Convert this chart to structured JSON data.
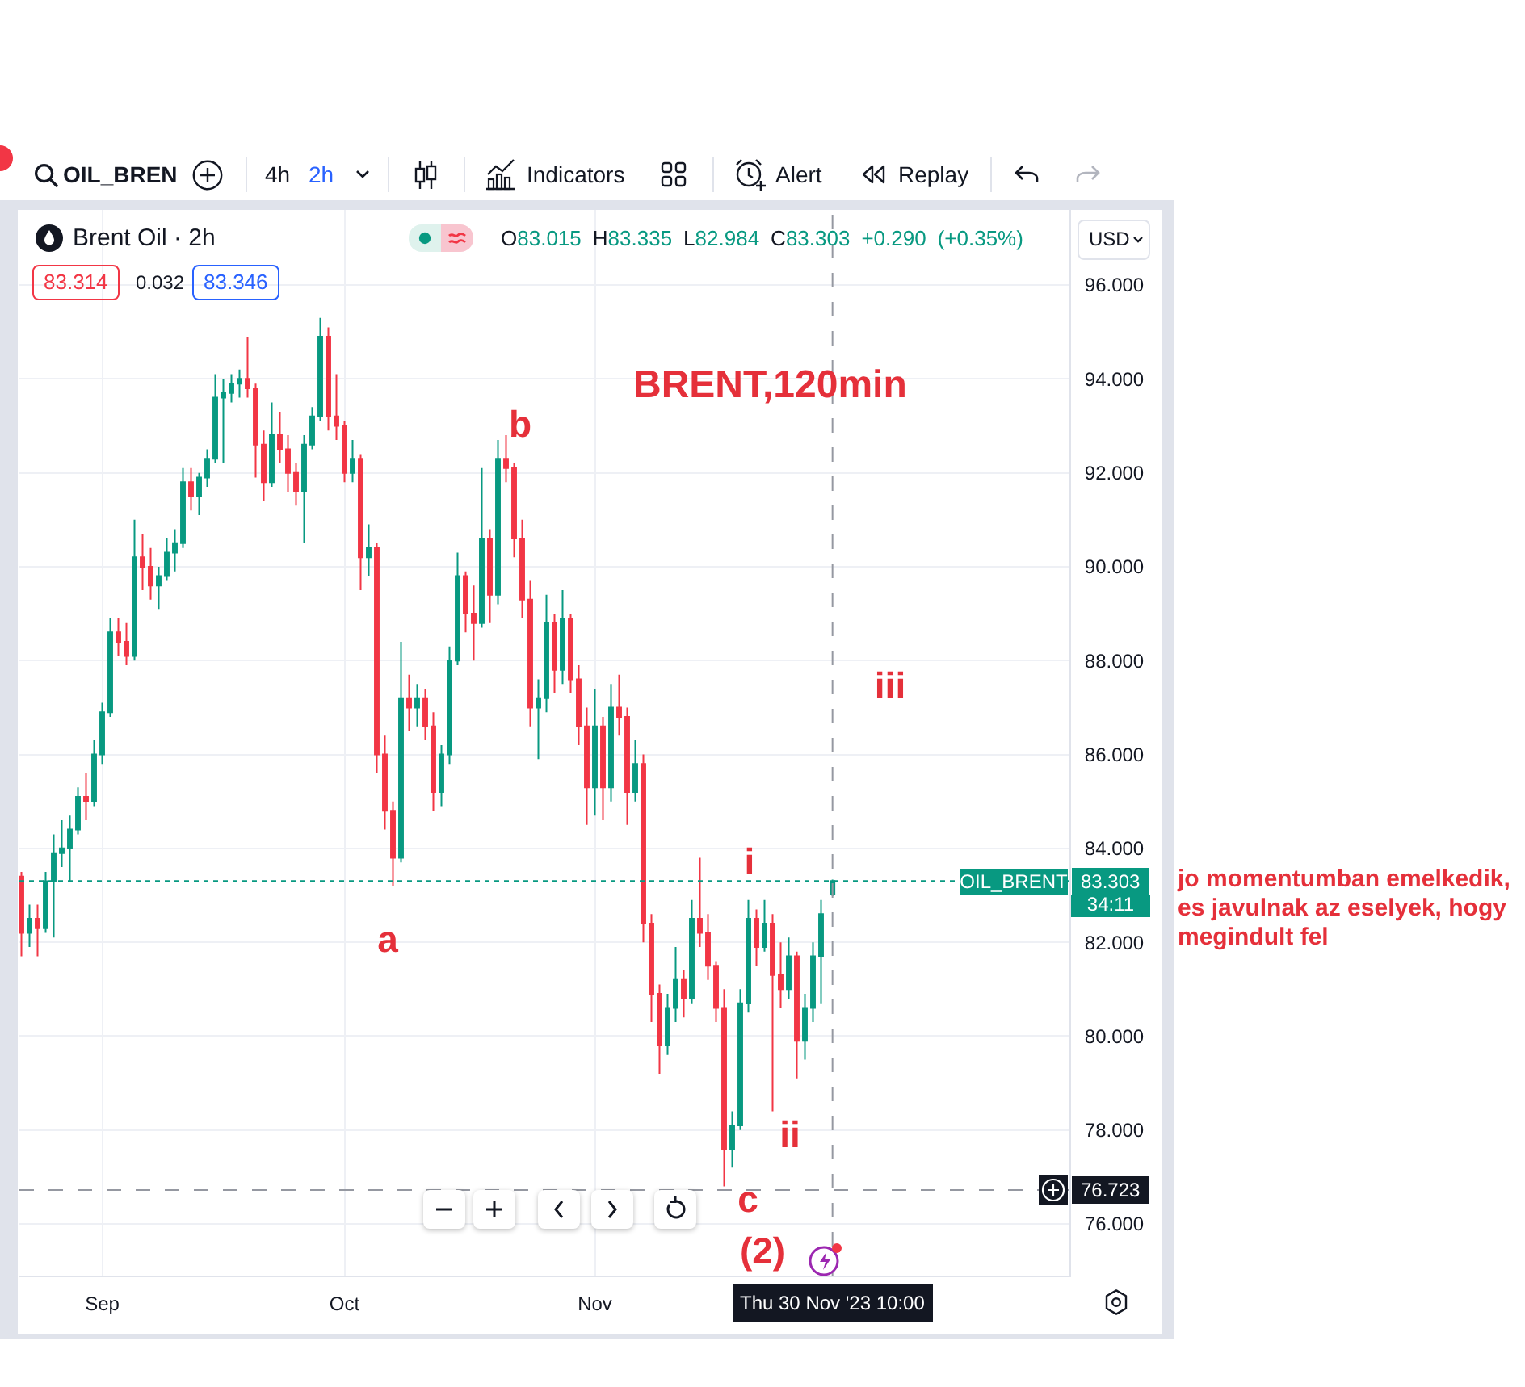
{
  "chart_data": {
    "type": "candlestick",
    "title": "Brent Oil · 2h",
    "subtitle": "O83.015 H83.335 L82.984 C83.303 +0.290 (+0.35%)",
    "x": [
      "2023-08-22",
      "2023-08-23",
      "2023-08-24",
      "2023-08-25",
      "2023-08-26",
      "2023-08-27",
      "2023-08-28",
      "2023-08-29",
      "2023-08-30",
      "2023-08-31",
      "2023-09-01",
      "2023-09-02",
      "2023-09-03",
      "2023-09-04",
      "2023-09-05",
      "2023-09-06",
      "2023-09-07",
      "2023-09-08",
      "2023-09-09",
      "2023-09-10",
      "2023-09-11",
      "2023-09-12",
      "2023-09-13",
      "2023-09-14",
      "2023-09-15",
      "2023-09-16",
      "2023-09-17",
      "2023-09-18",
      "2023-09-19",
      "2023-09-20",
      "2023-09-21",
      "2023-09-22",
      "2023-09-23",
      "2023-09-24",
      "2023-09-25",
      "2023-09-26",
      "2023-09-27",
      "2023-09-28",
      "2023-09-29",
      "2023-09-30",
      "2023-10-01",
      "2023-10-02",
      "2023-10-03",
      "2023-10-04",
      "2023-10-05",
      "2023-10-06",
      "2023-10-07",
      "2023-10-08",
      "2023-10-09",
      "2023-10-10",
      "2023-10-11",
      "2023-10-12",
      "2023-10-13",
      "2023-10-14",
      "2023-10-15",
      "2023-10-16",
      "2023-10-17",
      "2023-10-18",
      "2023-10-19",
      "2023-10-20",
      "2023-10-21",
      "2023-10-22",
      "2023-10-23",
      "2023-10-24",
      "2023-10-25",
      "2023-10-26",
      "2023-10-27",
      "2023-10-28",
      "2023-10-29",
      "2023-10-30",
      "2023-10-31",
      "2023-11-01",
      "2023-11-02",
      "2023-11-03",
      "2023-11-04",
      "2023-11-05",
      "2023-11-06",
      "2023-11-07",
      "2023-11-08",
      "2023-11-09",
      "2023-11-10",
      "2023-11-11",
      "2023-11-12",
      "2023-11-13",
      "2023-11-14",
      "2023-11-15",
      "2023-11-16",
      "2023-11-17",
      "2023-11-18",
      "2023-11-19",
      "2023-11-20",
      "2023-11-21",
      "2023-11-22",
      "2023-11-23",
      "2023-11-24",
      "2023-11-25",
      "2023-11-26",
      "2023-11-27",
      "2023-11-28",
      "2023-11-29",
      "2023-11-30T10:00"
    ],
    "ohlc": [
      [
        83.4,
        83.5,
        81.7,
        82.2
      ],
      [
        82.2,
        82.8,
        81.9,
        82.5
      ],
      [
        82.5,
        82.8,
        81.7,
        82.3
      ],
      [
        82.3,
        83.5,
        82.2,
        83.3
      ],
      [
        83.3,
        84.3,
        82.1,
        83.9
      ],
      [
        83.9,
        84.6,
        83.6,
        84.0
      ],
      [
        84.0,
        84.7,
        83.3,
        84.4
      ],
      [
        84.4,
        85.3,
        84.3,
        85.1
      ],
      [
        85.1,
        85.6,
        84.6,
        85.0
      ],
      [
        85.0,
        86.3,
        84.9,
        86.0
      ],
      [
        86.0,
        87.1,
        85.8,
        86.9
      ],
      [
        86.9,
        88.9,
        86.8,
        88.6
      ],
      [
        88.6,
        88.9,
        88.1,
        88.4
      ],
      [
        88.4,
        88.8,
        87.9,
        88.1
      ],
      [
        88.1,
        91.0,
        88.0,
        90.2
      ],
      [
        90.2,
        90.7,
        89.5,
        90.0
      ],
      [
        90.0,
        90.4,
        89.3,
        89.6
      ],
      [
        89.6,
        90.0,
        89.1,
        89.8
      ],
      [
        89.8,
        90.6,
        89.7,
        90.3
      ],
      [
        90.3,
        90.8,
        89.9,
        90.5
      ],
      [
        90.5,
        92.1,
        90.4,
        91.8
      ],
      [
        91.8,
        92.1,
        91.2,
        91.5
      ],
      [
        91.5,
        92.0,
        91.1,
        91.9
      ],
      [
        91.9,
        92.5,
        91.7,
        92.3
      ],
      [
        92.3,
        94.1,
        92.2,
        93.6
      ],
      [
        93.6,
        94.0,
        92.2,
        93.7
      ],
      [
        93.7,
        94.1,
        93.5,
        93.9
      ],
      [
        93.9,
        94.2,
        93.6,
        94.0
      ],
      [
        94.0,
        94.9,
        93.6,
        93.8
      ],
      [
        93.8,
        93.9,
        91.9,
        92.6
      ],
      [
        92.6,
        92.9,
        91.4,
        91.8
      ],
      [
        91.8,
        93.5,
        91.7,
        92.8
      ],
      [
        92.8,
        93.3,
        92.2,
        92.5
      ],
      [
        92.5,
        92.8,
        91.6,
        92.0
      ],
      [
        92.0,
        92.2,
        91.3,
        91.6
      ],
      [
        91.6,
        92.8,
        90.5,
        92.6
      ],
      [
        92.6,
        93.4,
        92.5,
        93.2
      ],
      [
        93.2,
        95.3,
        93.1,
        94.9
      ],
      [
        94.9,
        95.1,
        92.9,
        93.2
      ],
      [
        93.2,
        94.1,
        92.7,
        93.0
      ],
      [
        93.0,
        93.1,
        91.8,
        92.0
      ],
      [
        92.0,
        92.7,
        91.8,
        92.3
      ],
      [
        92.3,
        92.4,
        89.5,
        90.2
      ],
      [
        90.2,
        90.9,
        89.8,
        90.4
      ],
      [
        90.4,
        90.5,
        85.6,
        86.0
      ],
      [
        86.0,
        86.4,
        84.4,
        84.8
      ],
      [
        84.8,
        85.0,
        83.2,
        83.8
      ],
      [
        83.8,
        88.4,
        83.7,
        87.2
      ],
      [
        87.2,
        87.7,
        86.5,
        87.0
      ],
      [
        87.0,
        87.5,
        86.6,
        87.2
      ],
      [
        87.2,
        87.4,
        86.3,
        86.6
      ],
      [
        86.6,
        86.9,
        84.8,
        85.2
      ],
      [
        85.2,
        86.2,
        84.9,
        86.0
      ],
      [
        86.0,
        88.3,
        85.8,
        88.0
      ],
      [
        88.0,
        90.3,
        87.9,
        89.8
      ],
      [
        89.8,
        89.9,
        88.6,
        89.0
      ],
      [
        89.0,
        89.6,
        88.0,
        88.8
      ],
      [
        88.8,
        92.1,
        88.7,
        90.6
      ],
      [
        90.6,
        90.8,
        88.8,
        89.4
      ],
      [
        89.4,
        92.7,
        89.2,
        92.3
      ],
      [
        92.3,
        92.8,
        91.8,
        92.1
      ],
      [
        92.1,
        92.2,
        90.2,
        90.6
      ],
      [
        90.6,
        91.0,
        88.9,
        89.3
      ],
      [
        89.3,
        89.7,
        86.6,
        87.0
      ],
      [
        87.0,
        87.6,
        85.9,
        87.2
      ],
      [
        87.2,
        89.4,
        86.9,
        88.8
      ],
      [
        88.8,
        89.0,
        87.3,
        87.8
      ],
      [
        87.8,
        89.5,
        87.5,
        88.9
      ],
      [
        88.9,
        89.0,
        87.3,
        87.6
      ],
      [
        87.6,
        87.9,
        86.2,
        86.6
      ],
      [
        86.6,
        87.0,
        84.5,
        85.3
      ],
      [
        85.3,
        87.4,
        84.7,
        86.6
      ],
      [
        86.6,
        86.8,
        84.6,
        85.3
      ],
      [
        85.3,
        87.5,
        85.0,
        87.0
      ],
      [
        87.0,
        87.7,
        86.4,
        86.8
      ],
      [
        86.8,
        87.0,
        84.5,
        85.2
      ],
      [
        85.2,
        86.3,
        85.0,
        85.8
      ],
      [
        85.8,
        86.0,
        82.0,
        82.4
      ],
      [
        82.4,
        82.6,
        80.3,
        80.9
      ],
      [
        80.9,
        81.1,
        79.2,
        79.8
      ],
      [
        79.8,
        80.9,
        79.6,
        80.6
      ],
      [
        80.6,
        81.9,
        80.3,
        81.2
      ],
      [
        81.2,
        81.4,
        80.4,
        80.8
      ],
      [
        80.8,
        82.9,
        80.7,
        82.5
      ],
      [
        82.5,
        83.8,
        81.9,
        82.2
      ],
      [
        82.2,
        82.6,
        81.2,
        81.5
      ],
      [
        81.5,
        81.6,
        80.3,
        80.6
      ],
      [
        80.6,
        81.0,
        76.8,
        77.6
      ],
      [
        77.6,
        78.4,
        77.2,
        78.1
      ],
      [
        78.1,
        81.0,
        78.0,
        80.7
      ],
      [
        80.7,
        82.9,
        80.5,
        82.5
      ],
      [
        82.5,
        82.7,
        81.5,
        81.9
      ],
      [
        81.9,
        82.9,
        81.8,
        82.4
      ],
      [
        82.4,
        82.6,
        78.4,
        81.3
      ],
      [
        81.3,
        82.0,
        80.6,
        81.0
      ],
      [
        81.0,
        82.1,
        80.8,
        81.7
      ],
      [
        81.7,
        81.8,
        79.1,
        79.9
      ],
      [
        79.9,
        80.9,
        79.5,
        80.6
      ],
      [
        80.6,
        82.0,
        80.3,
        81.7
      ],
      [
        81.7,
        82.9,
        80.7,
        82.6
      ],
      [
        83.015,
        83.335,
        82.984,
        83.303
      ]
    ],
    "colors": [
      "#f23645",
      "#089981",
      "#f23645",
      "#089981",
      "#089981",
      "#089981",
      "#089981",
      "#089981",
      "#f23645",
      "#089981",
      "#089981",
      "#089981",
      "#f23645",
      "#f23645",
      "#089981",
      "#f23645",
      "#f23645",
      "#089981",
      "#089981",
      "#089981",
      "#089981",
      "#f23645",
      "#089981",
      "#089981",
      "#089981",
      "#089981",
      "#089981",
      "#089981",
      "#f23645",
      "#f23645",
      "#f23645",
      "#089981",
      "#f23645",
      "#f23645",
      "#f23645",
      "#089981",
      "#089981",
      "#089981",
      "#f23645",
      "#f23645",
      "#f23645",
      "#089981",
      "#f23645",
      "#089981",
      "#f23645",
      "#f23645",
      "#f23645",
      "#089981",
      "#f23645",
      "#089981",
      "#f23645",
      "#f23645",
      "#089981",
      "#089981",
      "#089981",
      "#f23645",
      "#f23645",
      "#089981",
      "#f23645",
      "#089981",
      "#f23645",
      "#f23645",
      "#f23645",
      "#f23645",
      "#089981",
      "#089981",
      "#f23645",
      "#089981",
      "#f23645",
      "#f23645",
      "#f23645",
      "#089981",
      "#f23645",
      "#089981",
      "#f23645",
      "#f23645",
      "#089981",
      "#f23645",
      "#f23645",
      "#f23645",
      "#089981",
      "#089981",
      "#f23645",
      "#089981",
      "#f23645",
      "#f23645",
      "#f23645",
      "#f23645",
      "#089981",
      "#089981",
      "#089981",
      "#f23645",
      "#089981",
      "#f23645",
      "#f23645",
      "#089981",
      "#f23645",
      "#089981",
      "#089981",
      "#089981",
      "#089981"
    ],
    "xlim": [
      "2023-08-21T18:00",
      "2023-12-29T18:00"
    ],
    "xticks": [
      {
        "value": "2023-09-01",
        "label": "Sep"
      },
      {
        "value": "2023-10-01",
        "label": "Oct"
      },
      {
        "value": "2023-11-01",
        "label": "Nov"
      }
    ],
    "ylim": [
      74.9,
      97.6
    ],
    "yticks": [
      {
        "value": 76,
        "label": "76.000"
      },
      {
        "value": 78,
        "label": "78.000"
      },
      {
        "value": 80,
        "label": "80.000"
      },
      {
        "value": 82,
        "label": "82.000"
      },
      {
        "value": 84,
        "label": "84.000"
      },
      {
        "value": 86,
        "label": "86.000"
      },
      {
        "value": 88,
        "label": "88.000"
      },
      {
        "value": 90,
        "label": "90.000"
      },
      {
        "value": 92,
        "label": "92.000"
      },
      {
        "value": 94,
        "label": "94.000"
      },
      {
        "value": 96,
        "label": "96.000"
      }
    ],
    "grid": true,
    "ref_lines": [
      {
        "axis": "y",
        "value": 83.303,
        "label": "83.303",
        "color": "#089981",
        "line_style": "dotted"
      },
      {
        "axis": "y",
        "value": 76.723,
        "label": "76.723",
        "color": "#9598a1",
        "line_style": "dashed"
      },
      {
        "axis": "x",
        "value": "2023-11-30T10:00",
        "label": "Thu 30 Nov '23 10:00",
        "color": "#9598a1",
        "line_style": "dashed"
      }
    ],
    "annotations": [
      "OIL_BREN",
      "4h",
      "2h",
      "Indicators",
      "Alert",
      "Replay",
      "83.314",
      "0.032",
      "83.346",
      "USD",
      "OIL_BRENT",
      "34:11",
      "jo momentumban emelkedik, es javulnak az eselyek, hogy megindult fel",
      "BRENT,120min",
      "a",
      "b",
      "c",
      "i",
      "ii",
      "iii",
      "(2)"
    ]
  }
}
